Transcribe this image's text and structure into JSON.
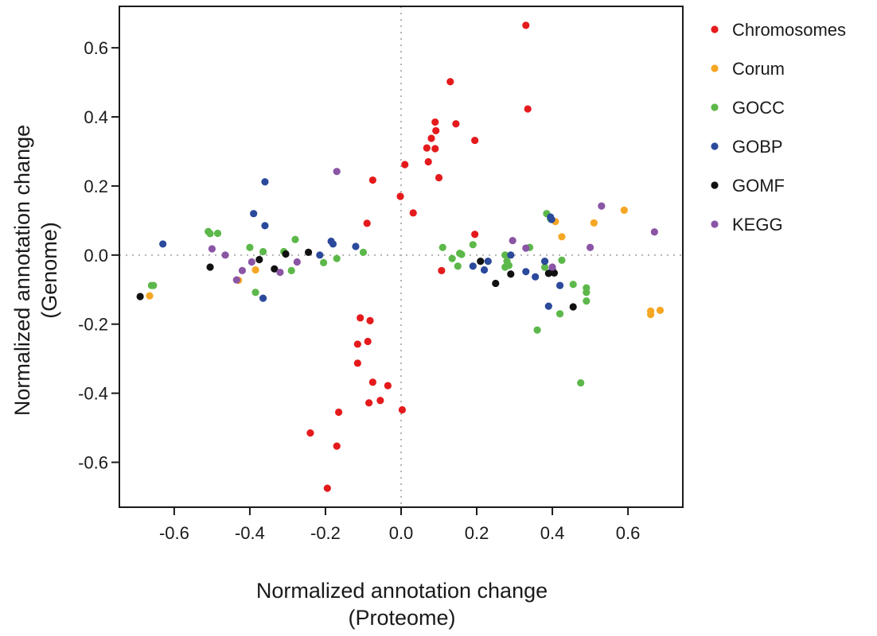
{
  "chart_data": {
    "type": "scatter",
    "title": "",
    "xlabel": [
      "Normalized annotation change",
      "(Proteome)"
    ],
    "ylabel": [
      "Normalized annotation change",
      "(Genome)"
    ],
    "xlim": [
      -0.745,
      0.745
    ],
    "ylim": [
      -0.73,
      0.72
    ],
    "xticks": [
      -0.6,
      -0.4,
      -0.2,
      0.0,
      0.2,
      0.4,
      0.6
    ],
    "xtick_labels": [
      "-0.6",
      "-0.4",
      "-0.2",
      "0.0",
      "0.2",
      "0.4",
      "0.6"
    ],
    "yticks": [
      -0.6,
      -0.4,
      -0.2,
      0.0,
      0.2,
      0.4,
      0.6
    ],
    "ytick_labels": [
      "-0.6",
      "-0.4",
      "-0.2",
      "0.0",
      "0.2",
      "0.4",
      "0.6"
    ],
    "reference_lines": {
      "x": 0,
      "y": 0,
      "style": "dotted",
      "color": "#b3b3b3"
    },
    "grid": false,
    "legend_position": "right",
    "series": [
      {
        "name": "Chromosomes",
        "color": "#e41a1c",
        "points": [
          [
            0.33,
            0.665
          ],
          [
            0.13,
            0.502
          ],
          [
            0.335,
            0.423
          ],
          [
            0.09,
            0.385
          ],
          [
            0.145,
            0.38
          ],
          [
            0.092,
            0.36
          ],
          [
            0.08,
            0.338
          ],
          [
            0.195,
            0.332
          ],
          [
            0.068,
            0.31
          ],
          [
            0.09,
            0.308
          ],
          [
            0.072,
            0.27
          ],
          [
            0.01,
            0.262
          ],
          [
            0.1,
            0.224
          ],
          [
            -0.075,
            0.217
          ],
          [
            -0.002,
            0.17
          ],
          [
            0.032,
            0.122
          ],
          [
            -0.09,
            0.092
          ],
          [
            0.195,
            0.06
          ],
          [
            0.107,
            -0.045
          ],
          [
            -0.108,
            -0.182
          ],
          [
            -0.082,
            -0.19
          ],
          [
            -0.088,
            -0.25
          ],
          [
            -0.115,
            -0.258
          ],
          [
            -0.115,
            -0.313
          ],
          [
            -0.075,
            -0.368
          ],
          [
            -0.035,
            -0.378
          ],
          [
            -0.085,
            -0.428
          ],
          [
            -0.055,
            -0.421
          ],
          [
            0.003,
            -0.448
          ],
          [
            -0.165,
            -0.455
          ],
          [
            -0.24,
            -0.515
          ],
          [
            -0.17,
            -0.553
          ],
          [
            -0.195,
            -0.675
          ]
        ]
      },
      {
        "name": "Corum",
        "color": "#f5a623",
        "points": [
          [
            -0.665,
            -0.118
          ],
          [
            -0.385,
            -0.043
          ],
          [
            -0.43,
            -0.073
          ],
          [
            0.408,
            0.097
          ],
          [
            0.425,
            0.053
          ],
          [
            0.51,
            0.093
          ],
          [
            0.59,
            0.13
          ],
          [
            0.66,
            -0.162
          ],
          [
            0.66,
            -0.172
          ],
          [
            0.685,
            -0.16
          ]
        ]
      },
      {
        "name": "GOCC",
        "color": "#5cb84a",
        "points": [
          [
            -0.655,
            -0.088
          ],
          [
            -0.66,
            -0.088
          ],
          [
            -0.51,
            0.068
          ],
          [
            -0.505,
            0.062
          ],
          [
            -0.485,
            0.063
          ],
          [
            -0.4,
            0.022
          ],
          [
            -0.385,
            -0.108
          ],
          [
            -0.365,
            0.01
          ],
          [
            -0.31,
            0.01
          ],
          [
            -0.29,
            -0.045
          ],
          [
            -0.28,
            0.045
          ],
          [
            -0.205,
            -0.022
          ],
          [
            -0.17,
            -0.01
          ],
          [
            -0.1,
            0.008
          ],
          [
            0.11,
            0.022
          ],
          [
            0.135,
            -0.01
          ],
          [
            0.155,
            0.005
          ],
          [
            0.16,
            0.002
          ],
          [
            0.15,
            -0.032
          ],
          [
            0.19,
            0.03
          ],
          [
            0.275,
            0.0
          ],
          [
            0.28,
            -0.018
          ],
          [
            0.285,
            -0.03
          ],
          [
            0.275,
            -0.035
          ],
          [
            0.34,
            0.022
          ],
          [
            0.36,
            -0.217
          ],
          [
            0.38,
            -0.035
          ],
          [
            0.385,
            0.12
          ],
          [
            0.395,
            0.105
          ],
          [
            0.42,
            -0.17
          ],
          [
            0.425,
            -0.015
          ],
          [
            0.455,
            -0.085
          ],
          [
            0.475,
            -0.37
          ],
          [
            0.49,
            -0.095
          ],
          [
            0.49,
            -0.108
          ],
          [
            0.49,
            -0.133
          ]
        ]
      },
      {
        "name": "GOBP",
        "color": "#2b4a9c",
        "points": [
          [
            -0.63,
            0.032
          ],
          [
            -0.39,
            0.12
          ],
          [
            -0.36,
            0.212
          ],
          [
            -0.36,
            0.085
          ],
          [
            -0.365,
            -0.125
          ],
          [
            -0.215,
            0.0
          ],
          [
            -0.185,
            0.04
          ],
          [
            -0.18,
            0.032
          ],
          [
            -0.12,
            0.025
          ],
          [
            0.19,
            -0.032
          ],
          [
            0.22,
            -0.043
          ],
          [
            0.23,
            -0.018
          ],
          [
            0.29,
            0.0
          ],
          [
            0.33,
            -0.048
          ],
          [
            0.355,
            -0.063
          ],
          [
            0.38,
            -0.018
          ],
          [
            0.39,
            -0.148
          ],
          [
            0.395,
            0.11
          ],
          [
            0.398,
            0.103
          ],
          [
            0.4,
            -0.04
          ],
          [
            0.42,
            -0.088
          ]
        ]
      },
      {
        "name": "GOMF",
        "color": "#111111",
        "points": [
          [
            -0.69,
            -0.12
          ],
          [
            -0.505,
            -0.035
          ],
          [
            -0.375,
            -0.013
          ],
          [
            -0.335,
            -0.04
          ],
          [
            -0.305,
            0.003
          ],
          [
            -0.245,
            0.008
          ],
          [
            0.21,
            -0.018
          ],
          [
            0.25,
            -0.082
          ],
          [
            0.29,
            -0.055
          ],
          [
            0.39,
            -0.053
          ],
          [
            0.405,
            -0.052
          ],
          [
            0.455,
            -0.15
          ]
        ]
      },
      {
        "name": "KEGG",
        "color": "#8b55a6",
        "points": [
          [
            -0.5,
            0.018
          ],
          [
            -0.465,
            0.0
          ],
          [
            -0.435,
            -0.072
          ],
          [
            -0.42,
            -0.045
          ],
          [
            -0.395,
            -0.02
          ],
          [
            -0.32,
            -0.05
          ],
          [
            -0.275,
            -0.02
          ],
          [
            -0.17,
            0.242
          ],
          [
            0.295,
            0.042
          ],
          [
            0.33,
            0.02
          ],
          [
            0.4,
            -0.035
          ],
          [
            0.5,
            0.022
          ],
          [
            0.53,
            0.142
          ],
          [
            0.67,
            0.067
          ]
        ]
      }
    ]
  }
}
